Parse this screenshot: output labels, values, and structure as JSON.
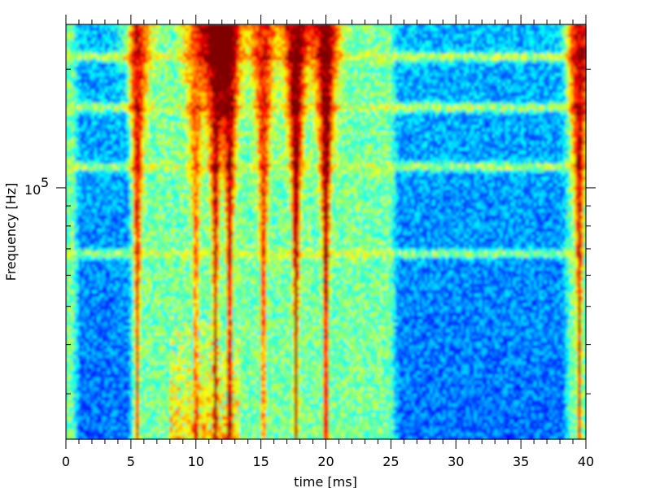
{
  "chart_data": {
    "type": "heatmap",
    "title": "",
    "xlabel": "time [ms]",
    "ylabel": "Frequency [Hz]",
    "xlim": [
      0,
      40
    ],
    "ylim": [
      23000,
      260000
    ],
    "yscale": "log",
    "colormap": "jet",
    "grid": false,
    "x_ticks": [
      {
        "value": 0,
        "label": "0"
      },
      {
        "value": 5,
        "label": "5"
      },
      {
        "value": 10,
        "label": "10"
      },
      {
        "value": 15,
        "label": "15"
      },
      {
        "value": 20,
        "label": "20"
      },
      {
        "value": 25,
        "label": "25"
      },
      {
        "value": 30,
        "label": "30"
      },
      {
        "value": 35,
        "label": "35"
      },
      {
        "value": 40,
        "label": "40"
      }
    ],
    "y_ticks": [
      {
        "value": 100000,
        "label": "10",
        "exponent": "5"
      }
    ],
    "quiet_intervals_ms": [
      [
        0.5,
        5.3
      ],
      [
        25.0,
        38.8
      ]
    ],
    "broadband_events_ms": [
      {
        "t": 5.5,
        "strength": 0.75
      },
      {
        "t": 10.0,
        "strength": 0.55
      },
      {
        "t": 11.5,
        "strength": 0.85
      },
      {
        "t": 12.6,
        "strength": 0.9
      },
      {
        "t": 15.2,
        "strength": 0.7
      },
      {
        "t": 17.7,
        "strength": 1.0
      },
      {
        "t": 20.0,
        "strength": 1.0
      },
      {
        "t": 39.5,
        "strength": 0.85
      }
    ],
    "tonal_bands_hz": [
      68000,
      113000,
      160000,
      215000
    ]
  }
}
